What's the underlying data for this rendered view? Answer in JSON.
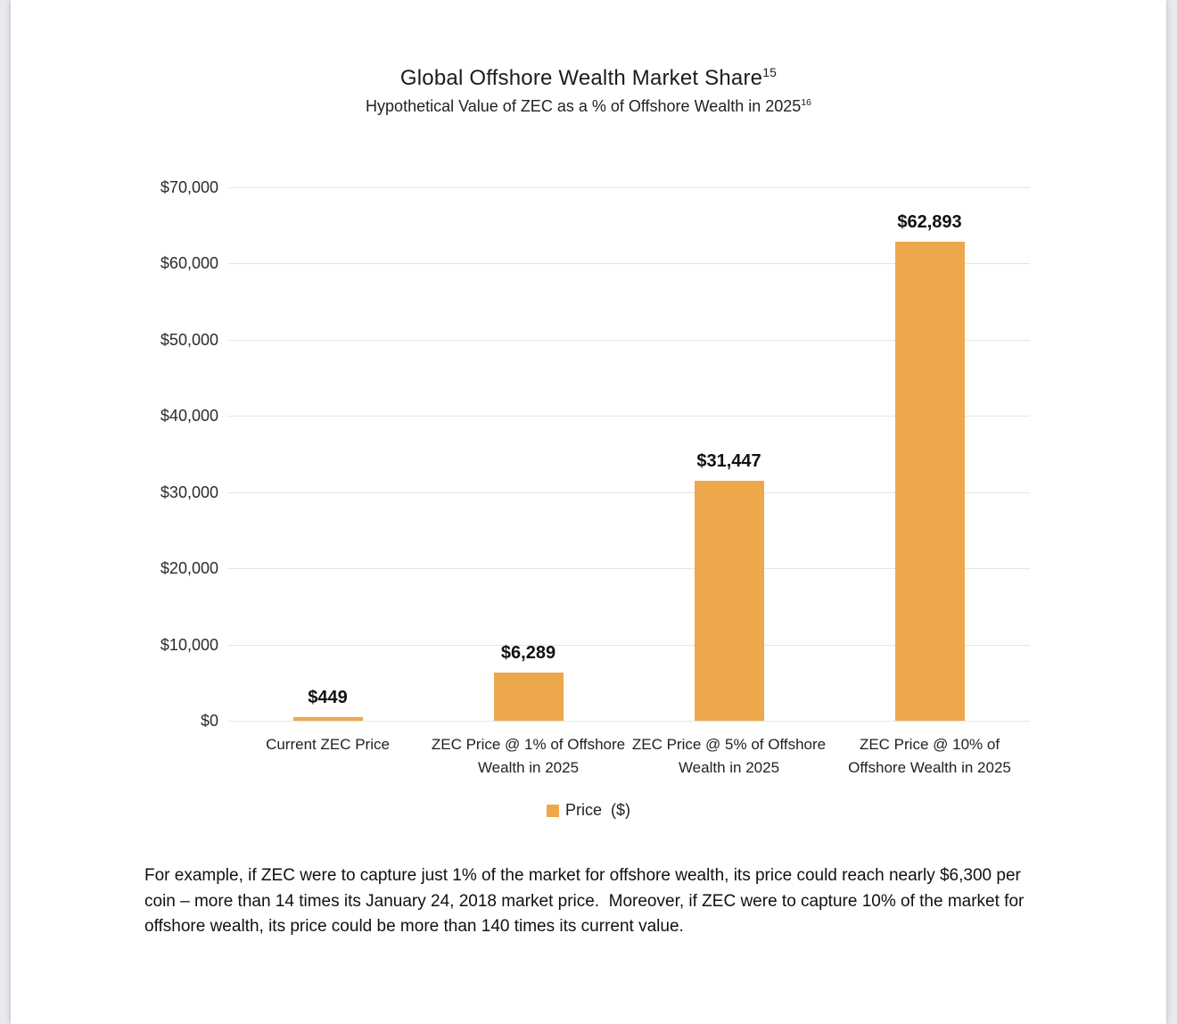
{
  "page": {
    "title": "Global Offshore Wealth Market Share",
    "title_superscript": "15",
    "subtitle": "Hypothetical Value of ZEC as a % of Offshore Wealth in 2025",
    "subtitle_superscript": "16",
    "caption": "For example, if ZEC were to capture just 1% of the market for offshore wealth, its price could reach nearly $6,300 per coin – more than 14 times its January 24, 2018 market price.  Moreover, if ZEC were to capture 10% of the market for offshore wealth, its price could be more than 140 times its current value."
  },
  "chart_data": {
    "type": "bar",
    "title": "Global Offshore Wealth Market Share",
    "subtitle": "Hypothetical Value of ZEC as a % of Offshore Wealth in 2025",
    "categories": [
      "Current ZEC Price",
      "ZEC Price @ 1% of Offshore Wealth in 2025",
      "ZEC Price @ 5% of Offshore Wealth in 2025",
      "ZEC Price @ 10% of Offshore Wealth in 2025"
    ],
    "values": [
      449,
      6289,
      31447,
      62893
    ],
    "value_labels": [
      "$449",
      "$6,289",
      "$31,447",
      "$62,893"
    ],
    "series_name": "Price  ($)",
    "ylim": [
      0,
      70000
    ],
    "ytick_interval": 10000,
    "ytick_labels": [
      "$0",
      "$10,000",
      "$20,000",
      "$30,000",
      "$40,000",
      "$50,000",
      "$60,000",
      "$70,000"
    ],
    "grid": true,
    "legend_position": "bottom",
    "bar_color": "#EEA84C",
    "gridline_color": "#e6e6e6"
  }
}
